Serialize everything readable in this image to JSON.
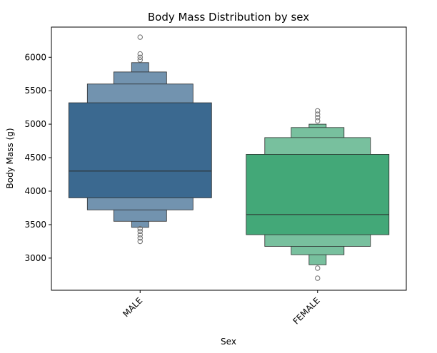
{
  "chart_data": {
    "type": "boxen",
    "title": "Body Mass Distribution by sex",
    "xlabel": "Sex",
    "ylabel": "Body Mass (g)",
    "ylim": [
      2520,
      6450
    ],
    "yticks": [
      3000,
      3500,
      4000,
      4500,
      5000,
      5500,
      6000
    ],
    "categories": [
      "MALE",
      "FEMALE"
    ],
    "colors": {
      "MALE": "#3b6990",
      "FEMALE": "#43a878",
      "edge": "#2b2b2b"
    },
    "series": [
      {
        "category": "MALE",
        "median": 4300,
        "boxes": [
          {
            "low": 3900,
            "high": 5320
          },
          {
            "low": 3720,
            "high": 5600
          },
          {
            "low": 3550,
            "high": 5780
          },
          {
            "low": 3460,
            "high": 5920
          }
        ],
        "outliers": [
          3440,
          3400,
          3350,
          3300,
          3250,
          5960,
          6000,
          6050,
          6300
        ]
      },
      {
        "category": "FEMALE",
        "median": 3650,
        "boxes": [
          {
            "low": 3350,
            "high": 4550
          },
          {
            "low": 3175,
            "high": 4800
          },
          {
            "low": 3050,
            "high": 4950
          },
          {
            "low": 2900,
            "high": 5000
          }
        ],
        "outliers": [
          2850,
          2700,
          5050,
          5100,
          5150,
          5200
        ]
      }
    ]
  }
}
